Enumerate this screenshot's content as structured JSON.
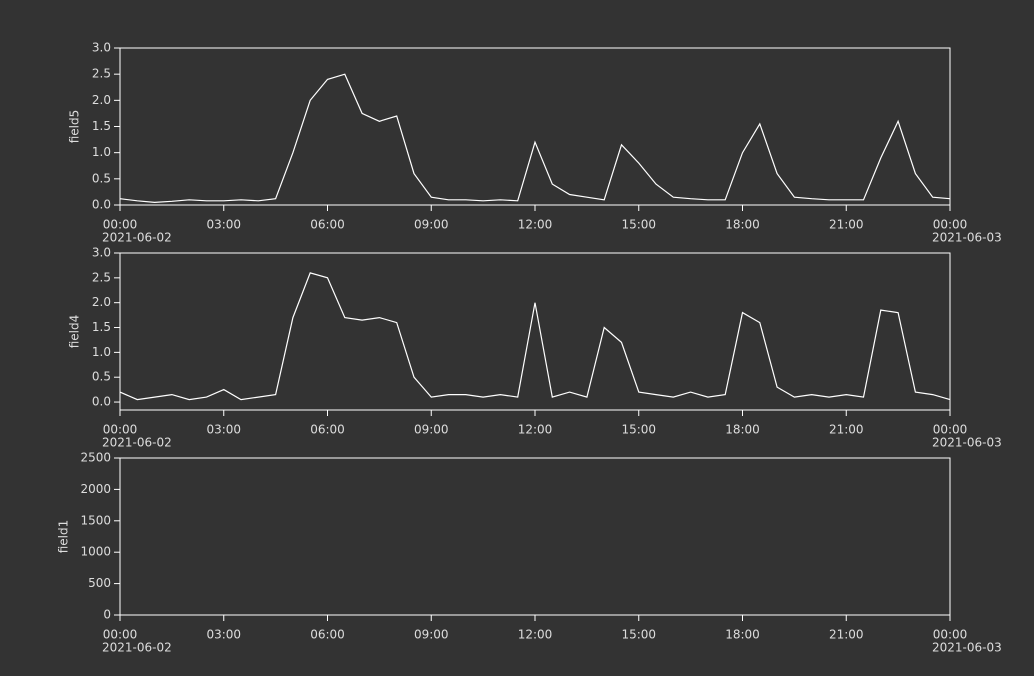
{
  "chart_data": [
    {
      "type": "line",
      "ylabel": "field5",
      "x": [
        "2021-06-02 00:00",
        "2021-06-02 00:30",
        "2021-06-02 01:00",
        "2021-06-02 01:30",
        "2021-06-02 02:00",
        "2021-06-02 02:30",
        "2021-06-02 03:00",
        "2021-06-02 03:30",
        "2021-06-02 04:00",
        "2021-06-02 04:30",
        "2021-06-02 05:00",
        "2021-06-02 05:30",
        "2021-06-02 06:00",
        "2021-06-02 06:30",
        "2021-06-02 07:00",
        "2021-06-02 07:30",
        "2021-06-02 08:00",
        "2021-06-02 08:30",
        "2021-06-02 09:00",
        "2021-06-02 09:30",
        "2021-06-02 10:00",
        "2021-06-02 10:30",
        "2021-06-02 11:00",
        "2021-06-02 11:30",
        "2021-06-02 12:00",
        "2021-06-02 12:30",
        "2021-06-02 13:00",
        "2021-06-02 13:30",
        "2021-06-02 14:00",
        "2021-06-02 14:30",
        "2021-06-02 15:00",
        "2021-06-02 15:30",
        "2021-06-02 16:00",
        "2021-06-02 16:30",
        "2021-06-02 17:00",
        "2021-06-02 17:30",
        "2021-06-02 18:00",
        "2021-06-02 18:30",
        "2021-06-02 19:00",
        "2021-06-02 19:30",
        "2021-06-02 20:00",
        "2021-06-02 20:30",
        "2021-06-02 21:00",
        "2021-06-02 21:30",
        "2021-06-02 22:00",
        "2021-06-02 22:30",
        "2021-06-02 23:00",
        "2021-06-02 23:30",
        "2021-06-03 00:00"
      ],
      "series": [
        {
          "color": "#ffffff",
          "values": [
            0.12,
            0.08,
            0.05,
            0.07,
            0.1,
            0.08,
            0.08,
            0.1,
            0.08,
            0.12,
            1.0,
            2.0,
            2.4,
            2.5,
            1.75,
            1.6,
            1.7,
            0.6,
            0.15,
            0.1,
            0.1,
            0.08,
            0.1,
            0.08,
            1.2,
            0.4,
            0.2,
            0.15,
            0.1,
            1.15,
            0.8,
            0.4,
            0.15,
            0.12,
            0.1,
            0.1,
            1.0,
            1.55,
            0.6,
            0.15,
            0.12,
            0.1,
            0.1,
            0.1,
            0.9,
            1.6,
            0.6,
            0.15,
            0.12
          ]
        }
      ],
      "xlim": [
        "2021-06-02 00:00",
        "2021-06-03 00:00"
      ],
      "xticks": [
        {
          "value": "2021-06-02 00:00",
          "label": "00:00"
        },
        {
          "value": "2021-06-02 03:00",
          "label": "03:00"
        },
        {
          "value": "2021-06-02 06:00",
          "label": "06:00"
        },
        {
          "value": "2021-06-02 09:00",
          "label": "09:00"
        },
        {
          "value": "2021-06-02 12:00",
          "label": "12:00"
        },
        {
          "value": "2021-06-02 15:00",
          "label": "15:00"
        },
        {
          "value": "2021-06-02 18:00",
          "label": "18:00"
        },
        {
          "value": "2021-06-02 21:00",
          "label": "21:00"
        },
        {
          "value": "2021-06-03 00:00",
          "label": "00:00"
        }
      ],
      "x_date_labels": [
        "2021-06-02",
        "2021-06-03"
      ],
      "ylim": [
        0,
        3
      ],
      "yticks": [
        {
          "value": 0,
          "label": "0.0"
        },
        {
          "value": 0.5,
          "label": "0.5"
        },
        {
          "value": 1,
          "label": "1.0"
        },
        {
          "value": 1.5,
          "label": "1.5"
        },
        {
          "value": 2,
          "label": "2.0"
        },
        {
          "value": 2.5,
          "label": "2.5"
        },
        {
          "value": 3,
          "label": "3.0"
        }
      ]
    },
    {
      "type": "line",
      "ylabel": "field4",
      "x": [
        "2021-06-02 00:00",
        "2021-06-02 00:30",
        "2021-06-02 01:00",
        "2021-06-02 01:30",
        "2021-06-02 02:00",
        "2021-06-02 02:30",
        "2021-06-02 03:00",
        "2021-06-02 03:30",
        "2021-06-02 04:00",
        "2021-06-02 04:30",
        "2021-06-02 05:00",
        "2021-06-02 05:30",
        "2021-06-02 06:00",
        "2021-06-02 06:30",
        "2021-06-02 07:00",
        "2021-06-02 07:30",
        "2021-06-02 08:00",
        "2021-06-02 08:30",
        "2021-06-02 09:00",
        "2021-06-02 09:30",
        "2021-06-02 10:00",
        "2021-06-02 10:30",
        "2021-06-02 11:00",
        "2021-06-02 11:30",
        "2021-06-02 12:00",
        "2021-06-02 12:30",
        "2021-06-02 13:00",
        "2021-06-02 13:30",
        "2021-06-02 14:00",
        "2021-06-02 14:30",
        "2021-06-02 15:00",
        "2021-06-02 15:30",
        "2021-06-02 16:00",
        "2021-06-02 16:30",
        "2021-06-02 17:00",
        "2021-06-02 17:30",
        "2021-06-02 18:00",
        "2021-06-02 18:30",
        "2021-06-02 19:00",
        "2021-06-02 19:30",
        "2021-06-02 20:00",
        "2021-06-02 20:30",
        "2021-06-02 21:00",
        "2021-06-02 21:30",
        "2021-06-02 22:00",
        "2021-06-02 22:30",
        "2021-06-02 23:00",
        "2021-06-02 23:30",
        "2021-06-03 00:00"
      ],
      "series": [
        {
          "color": "#ffffff",
          "values": [
            0.2,
            0.05,
            0.1,
            0.15,
            0.05,
            0.1,
            0.25,
            0.05,
            0.1,
            0.15,
            1.7,
            2.6,
            2.5,
            1.7,
            1.65,
            1.7,
            1.6,
            0.5,
            0.1,
            0.15,
            0.15,
            0.1,
            0.15,
            0.1,
            2.0,
            0.1,
            0.2,
            0.1,
            1.5,
            1.2,
            0.2,
            0.15,
            0.1,
            0.2,
            0.1,
            0.15,
            1.8,
            1.6,
            0.3,
            0.1,
            0.15,
            0.1,
            0.15,
            0.1,
            1.85,
            1.8,
            0.2,
            0.15,
            0.05
          ]
        }
      ],
      "xlim": [
        "2021-06-02 00:00",
        "2021-06-03 00:00"
      ],
      "xticks": [
        {
          "value": "2021-06-02 00:00",
          "label": "00:00"
        },
        {
          "value": "2021-06-02 03:00",
          "label": "03:00"
        },
        {
          "value": "2021-06-02 06:00",
          "label": "06:00"
        },
        {
          "value": "2021-06-02 09:00",
          "label": "09:00"
        },
        {
          "value": "2021-06-02 12:00",
          "label": "12:00"
        },
        {
          "value": "2021-06-02 15:00",
          "label": "15:00"
        },
        {
          "value": "2021-06-02 18:00",
          "label": "18:00"
        },
        {
          "value": "2021-06-02 21:00",
          "label": "21:00"
        },
        {
          "value": "2021-06-03 00:00",
          "label": "00:00"
        }
      ],
      "x_date_labels": [
        "2021-06-02",
        "2021-06-03"
      ],
      "ylim": [
        -0.16,
        3
      ],
      "yticks": [
        {
          "value": 0,
          "label": "0.0"
        },
        {
          "value": 0.5,
          "label": "0.5"
        },
        {
          "value": 1,
          "label": "1.0"
        },
        {
          "value": 1.5,
          "label": "1.5"
        },
        {
          "value": 2,
          "label": "2.0"
        },
        {
          "value": 2.5,
          "label": "2.5"
        },
        {
          "value": 3,
          "label": "3.0"
        }
      ]
    },
    {
      "type": "line",
      "ylabel": "field1",
      "series": [],
      "xlim": [
        "2021-06-02 00:00",
        "2021-06-03 00:00"
      ],
      "xticks": [
        {
          "value": "2021-06-02 00:00",
          "label": "00:00"
        },
        {
          "value": "2021-06-02 03:00",
          "label": "03:00"
        },
        {
          "value": "2021-06-02 06:00",
          "label": "06:00"
        },
        {
          "value": "2021-06-02 09:00",
          "label": "09:00"
        },
        {
          "value": "2021-06-02 12:00",
          "label": "12:00"
        },
        {
          "value": "2021-06-02 15:00",
          "label": "15:00"
        },
        {
          "value": "2021-06-02 18:00",
          "label": "18:00"
        },
        {
          "value": "2021-06-02 21:00",
          "label": "21:00"
        },
        {
          "value": "2021-06-03 00:00",
          "label": "00:00"
        }
      ],
      "x_date_labels": [
        "2021-06-02",
        "2021-06-03"
      ],
      "ylim": [
        0,
        2500
      ],
      "yticks": [
        0,
        500,
        1000,
        1500,
        2000,
        2500
      ]
    }
  ]
}
